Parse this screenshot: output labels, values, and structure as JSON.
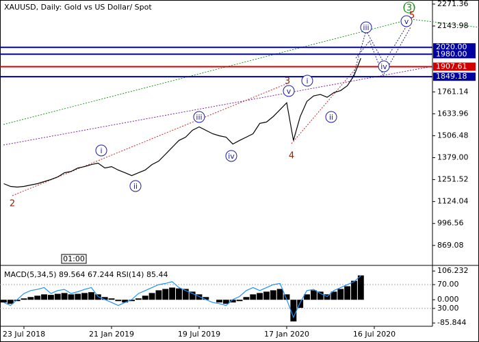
{
  "cursor_label": "01:00",
  "chart_data": [
    {
      "type": "line",
      "title": "XAUUSD, Daily:  Gold vs US Dollar/ Spot",
      "categories": [
        null,
        null,
        null,
        "23 Jul 2018",
        null,
        null,
        null,
        null,
        null,
        null,
        null,
        null,
        null,
        null,
        null,
        null,
        "21 Jan 2019",
        null,
        null,
        null,
        null,
        null,
        null,
        null,
        null,
        null,
        null,
        null,
        null,
        "19 Jul 2019",
        null,
        null,
        null,
        null,
        null,
        null,
        null,
        null,
        null,
        null,
        null,
        null,
        "17 Jan 2020",
        null,
        null,
        null,
        null,
        null,
        null,
        null,
        null,
        null,
        null,
        null,
        null,
        "16 Jul 2020",
        null,
        null,
        null,
        null,
        null,
        null,
        null,
        null
      ],
      "color": "#000000",
      "values": [
        1228,
        1212,
        1208,
        1212,
        1220,
        1228,
        1240,
        1252,
        1267,
        1291,
        1299,
        1319,
        1327,
        1339,
        1347,
        1319,
        1327,
        1307,
        1291,
        1275,
        1291,
        1307,
        1339,
        1359,
        1399,
        1439,
        1479,
        1498,
        1538,
        1558,
        1538,
        1518,
        1506,
        1498,
        1458,
        1479,
        1498,
        1518,
        1578,
        1586,
        1618,
        1658,
        1698,
        1479,
        1618,
        1706,
        1738,
        1746,
        1730,
        1757,
        1769,
        1797,
        1857,
        1957,
        null,
        null,
        null,
        null,
        null,
        null,
        null,
        null,
        null,
        null
      ],
      "ylim": [
        761,
        2295
      ],
      "yticks": [
        2271.36,
        2143.98,
        1761.14,
        1633.96,
        1506.48,
        {
          "value": 1379,
          "label": "1379.00"
        },
        1251.52,
        1124.04,
        996.56,
        869.08
      ],
      "levels": [
        {
          "value": 2020,
          "label": "2020.00",
          "color": "#0000a0"
        },
        {
          "value": 1980,
          "label": "1980.00",
          "color": "#0000a0"
        },
        {
          "value": 1907.61,
          "label": "1907.61",
          "color": "#d00000"
        },
        {
          "value": 1849.18,
          "label": "1849.18",
          "color": "#0000a0"
        }
      ],
      "annotations": [
        "2",
        "i",
        "ii",
        "iii",
        "iv",
        "3",
        "v",
        "4",
        "i",
        "ii",
        "iii",
        "iv",
        "v",
        "(3)",
        "5"
      ]
    },
    {
      "type": "bar",
      "label": "MACD(5,34,5) 89.564 67.244 RSI(14) 85.44",
      "categories": [
        null,
        null,
        null,
        "23 Jul 2018",
        null,
        null,
        null,
        null,
        null,
        null,
        null,
        null,
        null,
        null,
        null,
        null,
        "21 Jan 2019",
        null,
        null,
        null,
        null,
        null,
        null,
        null,
        null,
        null,
        null,
        null,
        null,
        "19 Jul 2019",
        null,
        null,
        null,
        null,
        null,
        null,
        null,
        null,
        null,
        null,
        null,
        null,
        "17 Jan 2020",
        null,
        null,
        null,
        null,
        null,
        null,
        null,
        null,
        null,
        null,
        null,
        null,
        "16 Jul 2020",
        null,
        null,
        null,
        null,
        null,
        null,
        null,
        null
      ],
      "series": [
        {
          "color": "#000000",
          "values": [
            -10,
            -15,
            -5,
            5,
            10,
            15,
            20,
            18,
            22,
            25,
            20,
            22,
            25,
            28,
            20,
            10,
            5,
            -5,
            -10,
            -5,
            5,
            15,
            25,
            35,
            40,
            45,
            42,
            40,
            30,
            20,
            10,
            0,
            -10,
            -15,
            -10,
            -5,
            10,
            20,
            25,
            30,
            35,
            40,
            20,
            -80,
            -30,
            20,
            35,
            30,
            20,
            30,
            40,
            50,
            70,
            90,
            null,
            null,
            null,
            null,
            null,
            null,
            null,
            null,
            null,
            null
          ]
        },
        {
          "color": "#1e90ff",
          "axis": "y2",
          "values": [
            40,
            35,
            45,
            55,
            60,
            62,
            65,
            55,
            60,
            62,
            55,
            58,
            62,
            65,
            50,
            45,
            40,
            35,
            40,
            45,
            55,
            60,
            65,
            70,
            72,
            75,
            65,
            60,
            55,
            50,
            45,
            40,
            38,
            35,
            45,
            50,
            60,
            65,
            60,
            65,
            70,
            72,
            45,
            15,
            40,
            60,
            62,
            55,
            50,
            60,
            65,
            70,
            75,
            85,
            null,
            null,
            null,
            null,
            null,
            null,
            null,
            null,
            null,
            null
          ]
        }
      ],
      "ylim": [
        -98,
        122
      ],
      "yticks": [
        {
          "value": 106.232,
          "label": "106.232"
        },
        {
          "value": 0,
          "label": "0.000"
        },
        {
          "value": -85.844,
          "label": "-85.844"
        }
      ],
      "y2lim": [
        0,
        100
      ],
      "y2ticks": [
        {
          "value": 70,
          "label": "70.00"
        },
        {
          "value": 30,
          "label": "30.00"
        }
      ]
    }
  ]
}
